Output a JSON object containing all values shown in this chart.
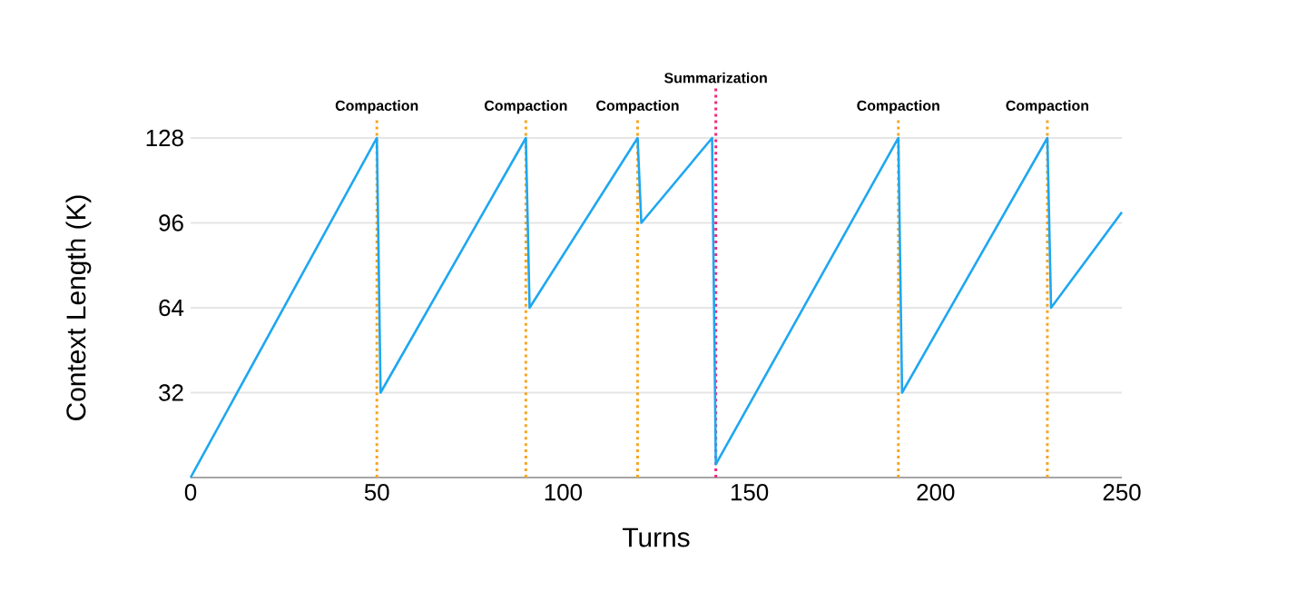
{
  "chart_data": {
    "type": "line",
    "xlabel": "Turns",
    "ylabel": "Context Length (K)",
    "x": [
      0,
      50,
      51,
      90,
      91,
      120,
      121,
      140,
      141,
      190,
      191,
      230,
      231,
      250
    ],
    "series": [
      {
        "color": "#1ea7f0",
        "values": [
          0,
          128,
          32,
          128,
          64,
          128,
          96,
          128,
          5,
          128,
          32,
          128,
          64,
          100
        ]
      }
    ],
    "xlim": [
      0,
      250
    ],
    "xticks": [
      0,
      50,
      100,
      150,
      200,
      250
    ],
    "ylim": [
      0,
      128
    ],
    "yticks": [
      32,
      64,
      96,
      128
    ],
    "grid": "y",
    "marker": "none",
    "line_style": "solid",
    "ref_lines": [
      {
        "axis": "x",
        "value": 50,
        "label": "Compaction",
        "color": "#f5a623",
        "line_style": "dotted"
      },
      {
        "axis": "x",
        "value": 90,
        "label": "Compaction",
        "color": "#f5a623",
        "line_style": "dotted"
      },
      {
        "axis": "x",
        "value": 120,
        "label": "Compaction",
        "color": "#f5a623",
        "line_style": "dotted"
      },
      {
        "axis": "x",
        "value": 141,
        "label": "Summarization",
        "color": "#f0287a",
        "line_style": "dotted"
      },
      {
        "axis": "x",
        "value": 190,
        "label": "Compaction",
        "color": "#f5a623",
        "line_style": "dotted"
      },
      {
        "axis": "x",
        "value": 230,
        "label": "Compaction",
        "color": "#f5a623",
        "line_style": "dotted"
      }
    ]
  }
}
